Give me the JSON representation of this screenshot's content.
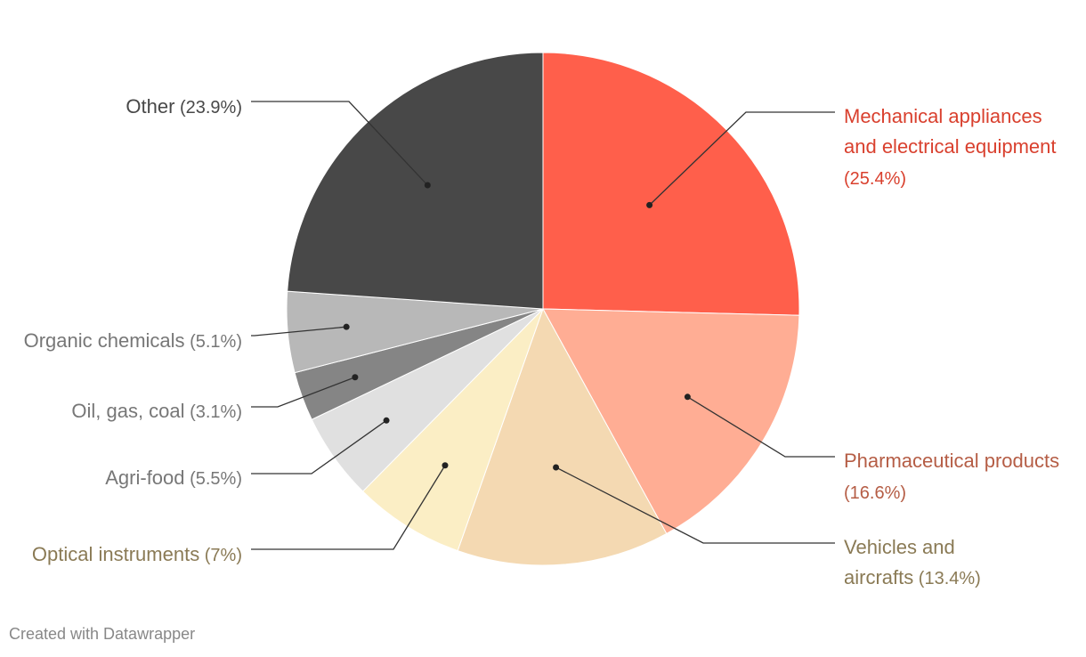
{
  "chart_data": {
    "type": "pie",
    "slices": [
      {
        "label": "Mechanical appliances and electrical equipment",
        "percent_label": "(25.4%)",
        "value": 25.4,
        "color": "#ff5f4b",
        "label_color": "#d9402e"
      },
      {
        "label": "Pharmaceutical products",
        "percent_label": "(16.6%)",
        "value": 16.6,
        "color": "#ffad94",
        "label_color": "#b55d45"
      },
      {
        "label": "Vehicles and aircrafts",
        "percent_label": "(13.4%)",
        "value": 13.4,
        "color": "#f4d9b2",
        "label_color": "#8a7a55"
      },
      {
        "label": "Optical instruments",
        "percent_label": "(7%)",
        "value": 7,
        "color": "#fbeec5",
        "label_color": "#8a7a55"
      },
      {
        "label": "Agri-food",
        "percent_label": "(5.5%)",
        "value": 5.5,
        "color": "#e0e0e0",
        "label_color": "#777777"
      },
      {
        "label": "Oil, gas, coal",
        "percent_label": "(3.1%)",
        "value": 3.1,
        "color": "#858585",
        "label_color": "#777777"
      },
      {
        "label": "Organic chemicals",
        "percent_label": "(5.1%)",
        "value": 5.1,
        "color": "#b8b8b8",
        "label_color": "#777777"
      },
      {
        "label": "Other",
        "percent_label": "(23.9%)",
        "value": 23.9,
        "color": "#484848",
        "label_color": "#484848"
      }
    ]
  },
  "footer": {
    "credit": "Created with Datawrapper"
  }
}
